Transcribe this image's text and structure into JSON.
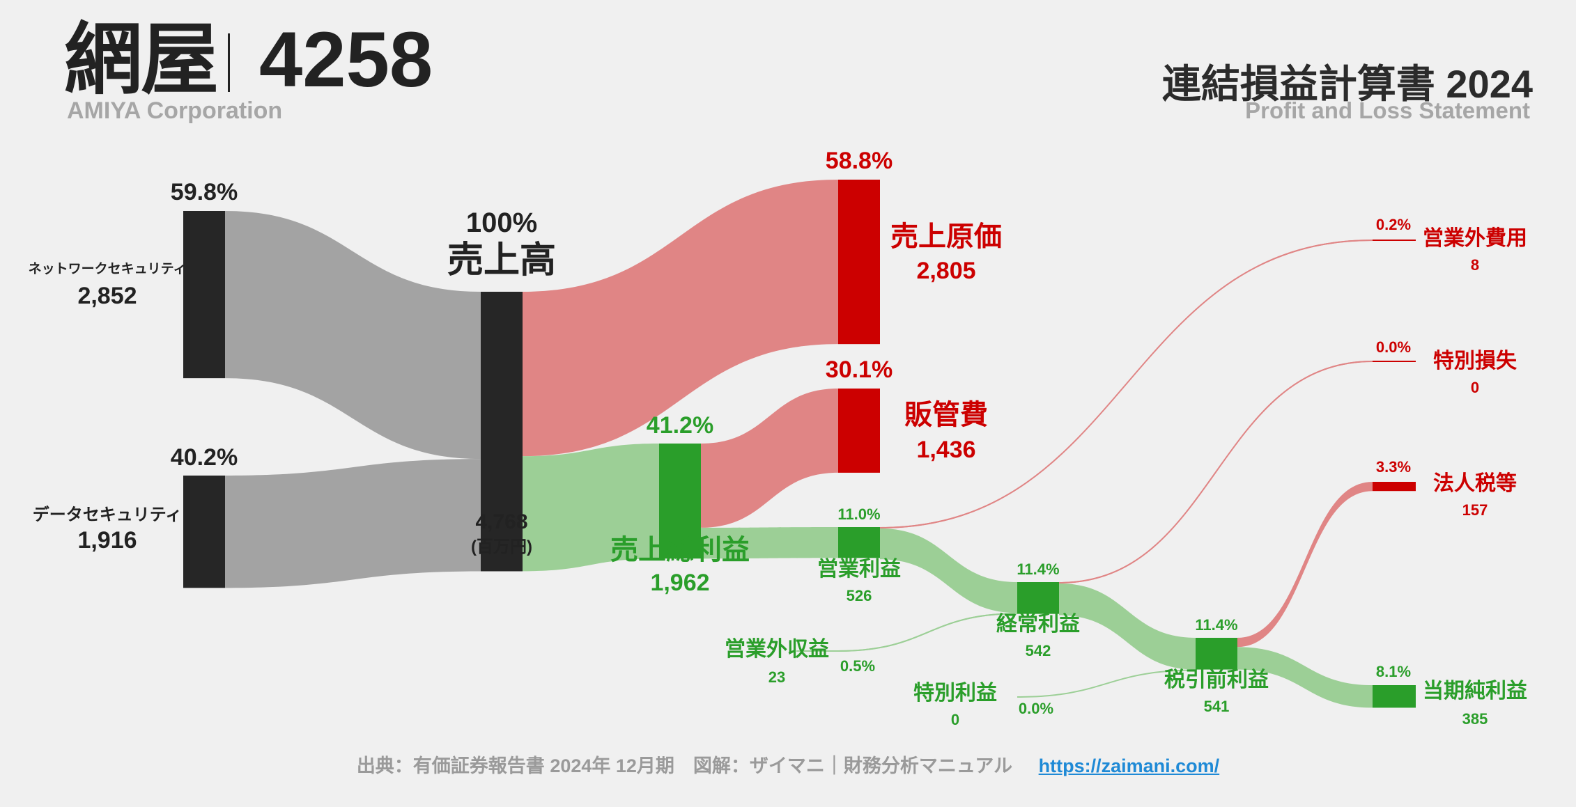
{
  "header": {
    "company": "網屋",
    "code": "4258",
    "company_en": "AMIYA Corporation",
    "title": "連結損益計算書 2024",
    "title_en": "Profit and Loss Statement"
  },
  "footer": {
    "source": "出典：有価証券報告書 2024年 12月期　図解：ザイマニ｜財務分析マニュアル",
    "url": "https://zaimani.com/"
  },
  "colors": {
    "dark": "#262626",
    "red": "#cc0000",
    "green": "#2a9e2a",
    "gray_flow": "#a3a3a3",
    "red_flow": "#e08585",
    "green_flow": "#9ccf96"
  },
  "chart_data": {
    "type": "sankey",
    "unit": "(百万円)",
    "nodes": [
      {
        "id": "net",
        "name": "ネットワークセキュリティ",
        "value": 2852,
        "value_label": "2,852",
        "pct": "59.8%"
      },
      {
        "id": "data",
        "name": "データセキュリティ",
        "value": 1916,
        "value_label": "1,916",
        "pct": "40.2%"
      },
      {
        "id": "rev",
        "name": "売上高",
        "value": 4768,
        "value_label": "4,768",
        "pct": "100%"
      },
      {
        "id": "cogs",
        "name": "売上原価",
        "value": 2805,
        "value_label": "2,805",
        "pct": "58.8%"
      },
      {
        "id": "gp",
        "name": "売上総利益",
        "value": 1962,
        "value_label": "1,962",
        "pct": "41.2%"
      },
      {
        "id": "sga",
        "name": "販管費",
        "value": 1436,
        "value_label": "1,436",
        "pct": "30.1%"
      },
      {
        "id": "op",
        "name": "営業利益",
        "value": 526,
        "value_label": "526",
        "pct": "11.0%"
      },
      {
        "id": "noi",
        "name": "営業外収益",
        "value": 23,
        "value_label": "23",
        "pct": "0.5%"
      },
      {
        "id": "noe",
        "name": "営業外費用",
        "value": 8,
        "value_label": "8",
        "pct": "0.2%"
      },
      {
        "id": "ord",
        "name": "経常利益",
        "value": 542,
        "value_label": "542",
        "pct": "11.4%"
      },
      {
        "id": "spg",
        "name": "特別利益",
        "value": 0,
        "value_label": "0",
        "pct": "0.0%"
      },
      {
        "id": "spl",
        "name": "特別損失",
        "value": 0,
        "value_label": "0",
        "pct": "0.0%"
      },
      {
        "id": "pti",
        "name": "税引前利益",
        "value": 541,
        "value_label": "541",
        "pct": "11.4%"
      },
      {
        "id": "tax",
        "name": "法人税等",
        "value": 157,
        "value_label": "157",
        "pct": "3.3%"
      },
      {
        "id": "ni",
        "name": "当期純利益",
        "value": 385,
        "value_label": "385",
        "pct": "8.1%"
      }
    ],
    "links": [
      {
        "source": "net",
        "target": "rev",
        "value": 2852
      },
      {
        "source": "data",
        "target": "rev",
        "value": 1916
      },
      {
        "source": "rev",
        "target": "cogs",
        "value": 2805
      },
      {
        "source": "rev",
        "target": "gp",
        "value": 1962
      },
      {
        "source": "gp",
        "target": "sga",
        "value": 1436
      },
      {
        "source": "gp",
        "target": "op",
        "value": 526
      },
      {
        "source": "op",
        "target": "noe",
        "value": 8
      },
      {
        "source": "op",
        "target": "ord",
        "value": 526
      },
      {
        "source": "noi",
        "target": "ord",
        "value": 23
      },
      {
        "source": "ord",
        "target": "spl",
        "value": 0
      },
      {
        "source": "ord",
        "target": "pti",
        "value": 541
      },
      {
        "source": "spg",
        "target": "pti",
        "value": 0
      },
      {
        "source": "pti",
        "target": "tax",
        "value": 157
      },
      {
        "source": "pti",
        "target": "ni",
        "value": 385
      }
    ]
  }
}
